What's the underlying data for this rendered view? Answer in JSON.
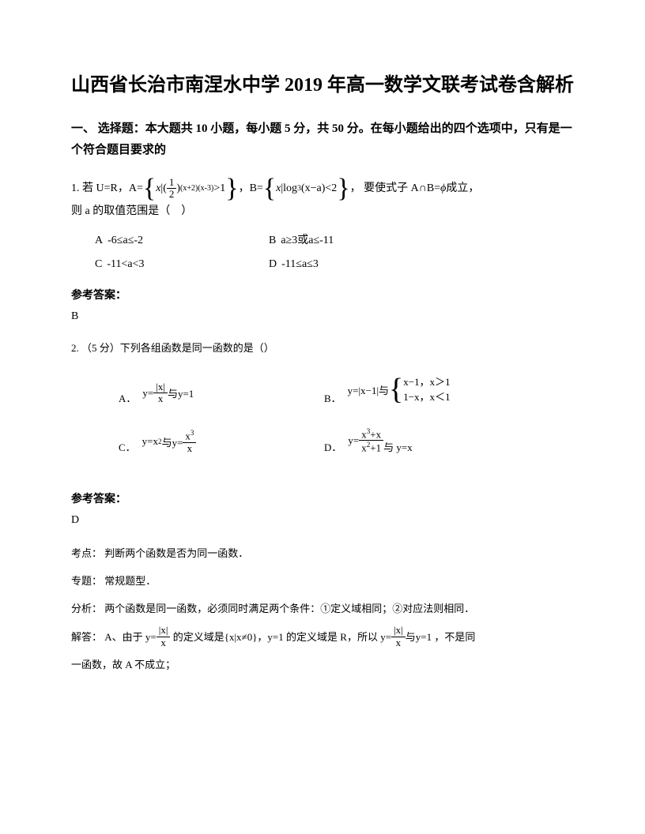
{
  "title": "山西省长治市南涅水中学 2019 年高一数学文联考试卷含解析",
  "section1": {
    "header": "一、 选择题：本大题共 10 小题，每小题 5 分，共 50 分。在每小题给出的四个选项中，只有是一个符合题目要求的"
  },
  "q1": {
    "prefix": "1. 若 U=R，A=",
    "setA_inner": "x|(½)",
    "setA_exp": "(x+2)(x-3)",
    "setA_cond": ">1",
    "mid1": "，B=",
    "setB_inner": "x|log₃(x-a)<2",
    "mid2": "， 要使式子 A∩B=",
    "phi": "∅",
    "mid3": "成立，",
    "line2": "则 a 的取值范围是（　）",
    "options": {
      "A": {
        "label": "A",
        "prefix": "-6",
        "expr": "≤a≤-2"
      },
      "B": {
        "label": "B",
        "prefix": "a",
        "expr": "≥3或a≤-11"
      },
      "C": {
        "label": "C",
        "prefix": "-11<",
        "expr": "a<3"
      },
      "D": {
        "label": "D",
        "prefix": "-11",
        "expr": "≤a≤3"
      }
    },
    "answer_label": "参考答案：",
    "answer": "B"
  },
  "q2": {
    "stem": "2. （5 分）下列各组函数是同一函数的是（）",
    "options": {
      "A": {
        "label": "A．"
      },
      "B": {
        "label": "B．"
      },
      "C": {
        "label": "C．"
      },
      "D": {
        "label": "D．",
        "tail": "与 y=x"
      }
    },
    "answer_label": "参考答案：",
    "answer": "D",
    "analysis": {
      "kaodian_label": "考点：",
      "kaodian": "判断两个函数是否为同一函数．",
      "zhuanti_label": "专题：",
      "zhuanti": "常规题型．",
      "fenxi_label": "分析：",
      "fenxi": "两个函数是同一函数，必须同时满足两个条件：①定义域相同；②对应法则相同．",
      "jieda_label": "解答：",
      "jieda_a_pre": "A、由于",
      "jieda_a_mid": "的定义域是{x|x≠0}，y=1 的定义域是 R，所以",
      "jieda_a_tail": "，不是同",
      "jieda_a_line2": "一函数，故 A 不成立；"
    }
  },
  "colors": {
    "text": "#000000",
    "background": "#ffffff"
  }
}
